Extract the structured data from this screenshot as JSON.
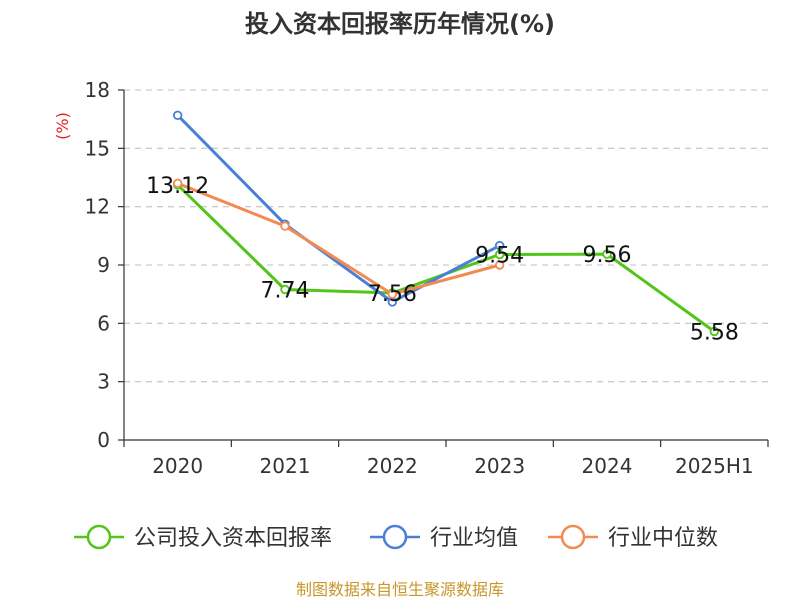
{
  "chart_data": {
    "type": "line",
    "title": "投入资本回报率历年情况(%)",
    "ylabel": "(%)",
    "xlabel": "",
    "categories": [
      "2020",
      "2021",
      "2022",
      "2023",
      "2024",
      "2025H1"
    ],
    "ylim": [
      0,
      18
    ],
    "yticks": [
      "0",
      "3",
      "6",
      "9",
      "12",
      "15",
      "18"
    ],
    "grid": true,
    "legend_position": "bottom",
    "series": [
      {
        "name": "公司投入资本回报率",
        "color": "#52c41a",
        "values": [
          13.12,
          7.74,
          7.56,
          9.54,
          9.56,
          5.58
        ],
        "labels": [
          "13.12",
          "7.74",
          "7.56",
          "9.54",
          "9.56",
          "5.58"
        ]
      },
      {
        "name": "行业均值",
        "color": "#4a7fd8",
        "values": [
          16.7,
          11.1,
          7.1,
          10.0,
          null,
          null
        ]
      },
      {
        "name": "行业中位数",
        "color": "#f28a52",
        "values": [
          13.2,
          11.0,
          7.5,
          9.0,
          null,
          null
        ]
      }
    ]
  },
  "source": "制图数据来自恒生聚源数据库"
}
